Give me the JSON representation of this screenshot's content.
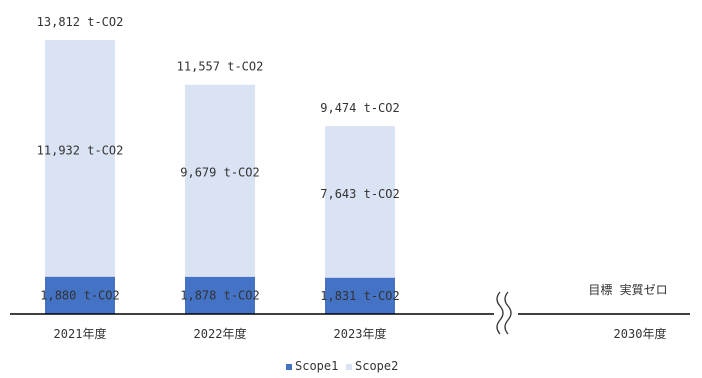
{
  "chart_data": {
    "type": "bar",
    "stacked": true,
    "categories": [
      "2021年度",
      "2022年度",
      "2023年度",
      "2030年度"
    ],
    "series": [
      {
        "name": "Scope1",
        "values": [
          1880,
          1878,
          1831,
          null
        ],
        "labels": [
          "1,880 t-CO2",
          "1,878 t-CO2",
          "1,831 t-CO2",
          ""
        ]
      },
      {
        "name": "Scope2",
        "values": [
          11932,
          9679,
          7643,
          null
        ],
        "labels": [
          "11,932 t-CO2",
          "9,679 t-CO2",
          "7,643 t-CO2",
          ""
        ]
      }
    ],
    "totals": [
      13812,
      11557,
      9474,
      null
    ],
    "total_labels": [
      "13,812 t-CO2",
      "11,557 t-CO2",
      "9,474 t-CO2",
      ""
    ],
    "target_label": "目標 実質ゼロ",
    "legend": {
      "placement": "bottom-center",
      "entries": [
        "Scope1",
        "Scope2"
      ]
    },
    "colors": {
      "Scope1": "#4472c4",
      "Scope2": "#dae3f3",
      "axis": "#000000"
    },
    "break_symbol": "axis-break",
    "grid": false
  }
}
